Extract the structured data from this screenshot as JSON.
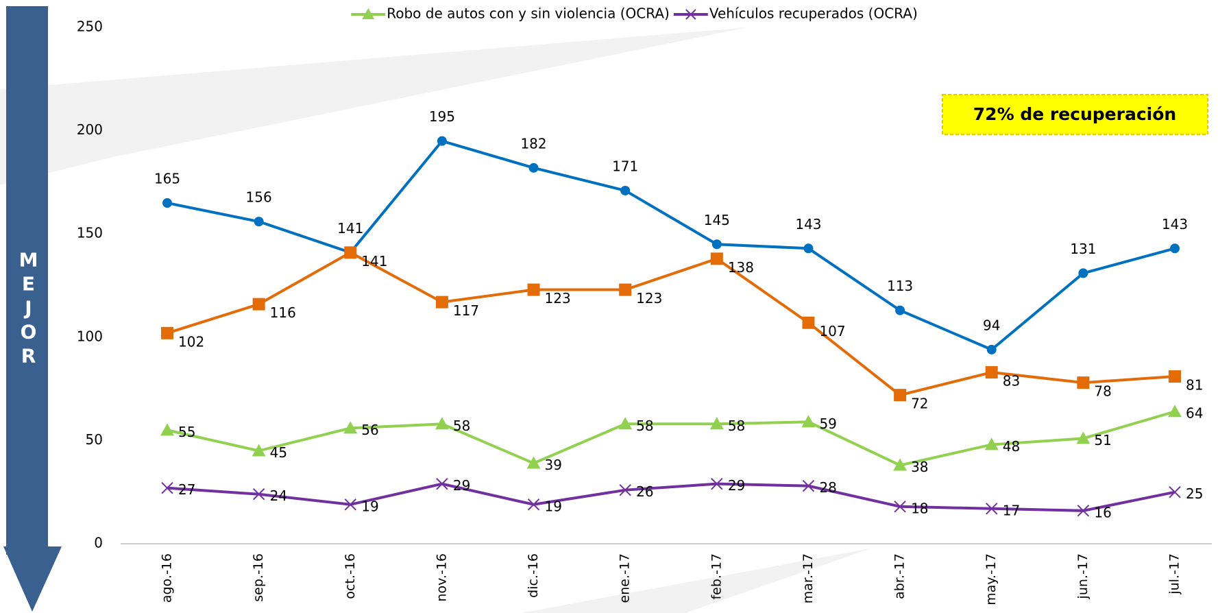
{
  "chart_data": {
    "type": "line",
    "categories": [
      "ago.-16",
      "sep.-16",
      "oct.-16",
      "nov.-16",
      "dic.-16",
      "ene.-17",
      "feb.-17",
      "mar.-17",
      "abr.-17",
      "may.-17",
      "jun.-17",
      "jul.-17"
    ],
    "series": [
      {
        "color": "#0070c0",
        "marker": "circle",
        "values": [
          165,
          156,
          141,
          195,
          182,
          171,
          145,
          143,
          113,
          94,
          131,
          143
        ]
      },
      {
        "color": "#e36c09",
        "marker": "square",
        "values": [
          102,
          116,
          141,
          117,
          123,
          123,
          138,
          107,
          72,
          83,
          78,
          81
        ]
      },
      {
        "name": "Robo de autos con y sin violencia (OCRA)",
        "color": "#92d050",
        "marker": "triangle",
        "values": [
          55,
          45,
          56,
          58,
          39,
          58,
          58,
          59,
          38,
          48,
          51,
          64
        ]
      },
      {
        "name": "Vehículos recuperados (OCRA)",
        "color": "#7030a0",
        "marker": "x",
        "values": [
          27,
          24,
          19,
          29,
          19,
          26,
          29,
          28,
          18,
          17,
          16,
          25
        ]
      }
    ],
    "ylim": [
      0,
      250
    ],
    "yticks": [
      0,
      50,
      100,
      150,
      200,
      250
    ],
    "grid": false,
    "legend": "top",
    "annotation": "72% de recuperación",
    "arrow_label": "MEJOR"
  }
}
